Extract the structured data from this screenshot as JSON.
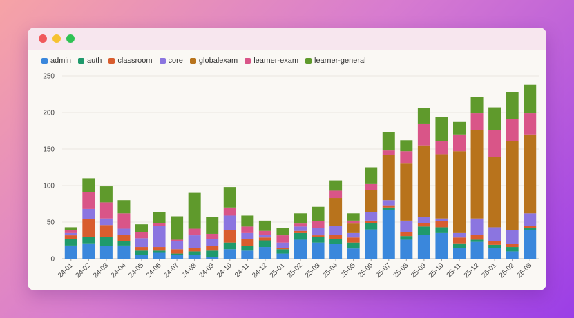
{
  "window": {
    "controls": [
      "close",
      "minimize",
      "maximize"
    ]
  },
  "chart_data": {
    "type": "bar",
    "stacked": true,
    "legend_placement": "top-left",
    "grid": true,
    "ylim": [
      0,
      250
    ],
    "yticks": [
      0,
      50,
      100,
      150,
      200,
      250
    ],
    "categories": [
      "24-01",
      "24-02",
      "24-03",
      "24-04",
      "24-05",
      "24-06",
      "24-07",
      "24-08",
      "24-09",
      "24-10",
      "24-11",
      "24-12",
      "25-01",
      "25-02",
      "25-03",
      "25-04",
      "25-05",
      "25-06",
      "25-07",
      "25-08",
      "25-09",
      "25-10",
      "25-11",
      "25-12",
      "26-01",
      "26-02",
      "26-03"
    ],
    "series": [
      {
        "name": "admin",
        "color": "#3a87dc",
        "values": [
          18,
          21,
          17,
          18,
          5,
          8,
          5,
          5,
          2,
          13,
          11,
          16,
          7,
          26,
          22,
          20,
          14,
          40,
          67,
          26,
          33,
          35,
          15,
          23,
          15,
          10,
          39
        ]
      },
      {
        "name": "auth",
        "color": "#1f9a6c",
        "values": [
          9,
          9,
          13,
          6,
          6,
          3,
          2,
          5,
          9,
          9,
          6,
          9,
          6,
          9,
          8,
          7,
          8,
          9,
          3,
          5,
          11,
          8,
          6,
          3,
          4,
          6,
          3
        ]
      },
      {
        "name": "classroom",
        "color": "#d95d2e",
        "values": [
          5,
          24,
          16,
          9,
          5,
          5,
          6,
          5,
          6,
          17,
          10,
          4,
          2,
          3,
          2,
          6,
          7,
          3,
          3,
          5,
          5,
          8,
          8,
          7,
          5,
          4,
          3
        ]
      },
      {
        "name": "core",
        "color": "#8b75e0",
        "values": [
          3,
          14,
          9,
          8,
          12,
          29,
          11,
          17,
          10,
          20,
          8,
          4,
          7,
          6,
          10,
          12,
          6,
          12,
          7,
          16,
          8,
          4,
          6,
          22,
          19,
          19,
          17
        ]
      },
      {
        "name": "globalexam",
        "color": "#b8731c",
        "values": [
          0,
          0,
          0,
          0,
          0,
          0,
          0,
          0,
          0,
          0,
          0,
          0,
          0,
          0,
          0,
          38,
          13,
          30,
          62,
          78,
          98,
          88,
          112,
          121,
          96,
          122,
          108
        ]
      },
      {
        "name": "learner-exam",
        "color": "#d95588",
        "values": [
          4,
          23,
          22,
          21,
          8,
          4,
          2,
          9,
          7,
          11,
          9,
          5,
          10,
          4,
          9,
          10,
          4,
          8,
          6,
          17,
          29,
          18,
          23,
          23,
          37,
          30,
          29
        ]
      },
      {
        "name": "learner-general",
        "color": "#5f9a2c",
        "values": [
          4,
          19,
          22,
          18,
          11,
          15,
          32,
          49,
          23,
          28,
          15,
          14,
          10,
          14,
          20,
          14,
          10,
          23,
          25,
          15,
          22,
          33,
          17,
          22,
          31,
          37,
          39
        ]
      }
    ]
  }
}
